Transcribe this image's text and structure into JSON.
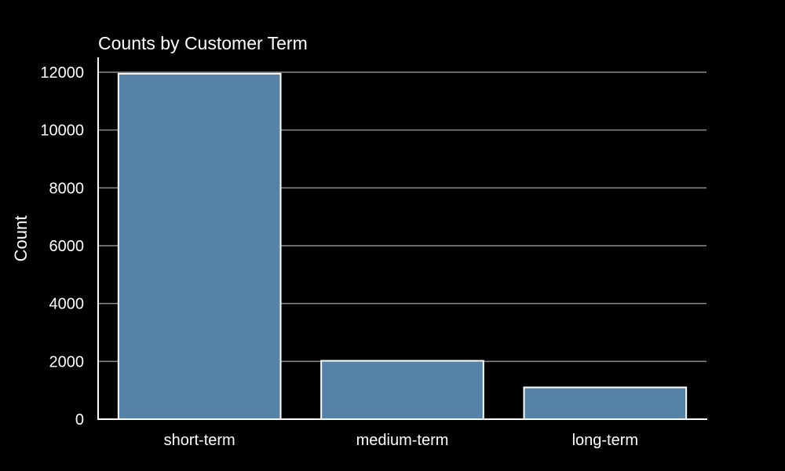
{
  "chart_data": {
    "type": "bar",
    "title": "Counts by Customer Term",
    "xlabel": "",
    "ylabel": "Count",
    "categories": [
      "short-term",
      "medium-term",
      "long-term"
    ],
    "values": [
      11950,
      2020,
      1100
    ],
    "ylim": [
      0,
      12500
    ],
    "yticks": [
      0,
      2000,
      4000,
      6000,
      8000,
      10000,
      12000
    ],
    "ytick_labels": [
      "0",
      "2000",
      "4000",
      "6000",
      "8000",
      "10000",
      "12000"
    ],
    "grid": "horizontal",
    "background_color": "#000000",
    "bar_color": "#5682a8",
    "bar_edge_color": "#ffffff",
    "grid_color": "#8c8c8c",
    "text_color": "#ffffff"
  }
}
